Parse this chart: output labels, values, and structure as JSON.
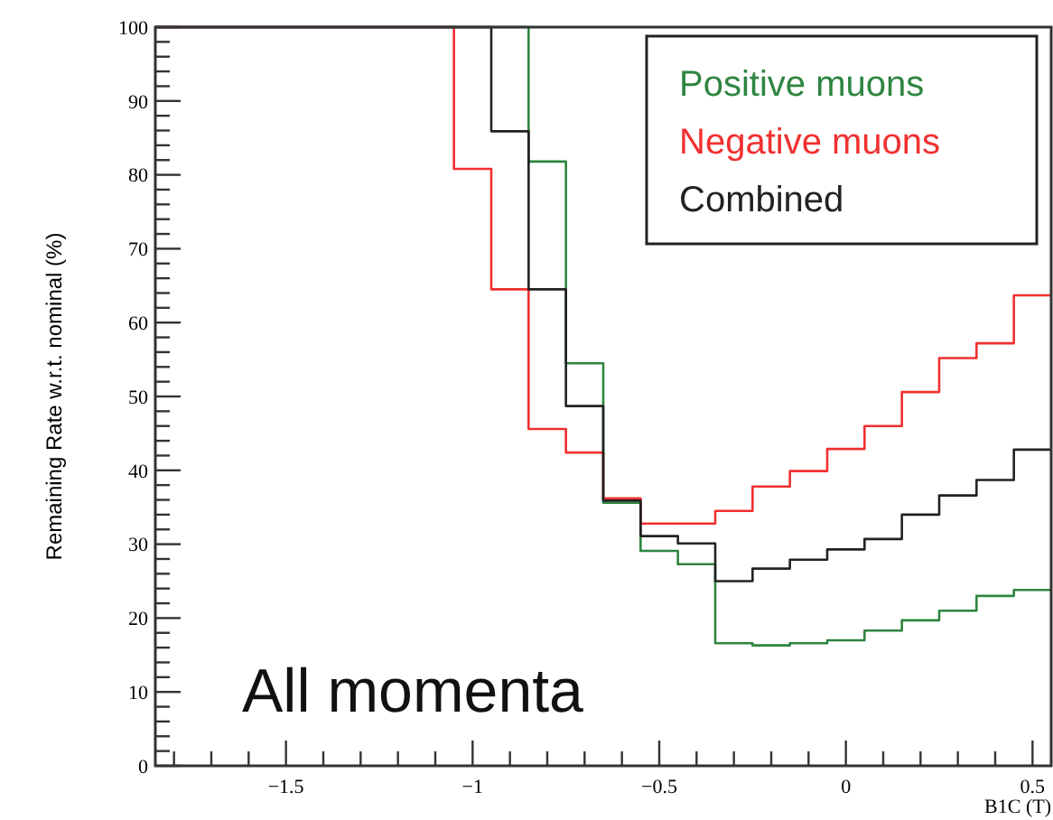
{
  "chart_data": {
    "type": "histogram",
    "xlabel": "B1C (T)",
    "ylabel": "Remaining Rate w.r.t. nominal (%)",
    "bins": [
      -1.85,
      -1.75,
      -1.65,
      -1.55,
      -1.45,
      -1.35,
      -1.25,
      -1.15,
      -1.05,
      -0.95,
      -0.85,
      -0.75,
      -0.65,
      -0.55,
      -0.45,
      -0.35,
      -0.25,
      -0.15,
      -0.05,
      0.05,
      0.15,
      0.25,
      0.35,
      0.45,
      0.55
    ],
    "series": [
      {
        "name": "Positive muons",
        "color": "#2e8540",
        "values": [
          100,
          100,
          100,
          100,
          100,
          100,
          100,
          100,
          100,
          100,
          81.8,
          54.5,
          35.6,
          29.1,
          27.3,
          16.6,
          16.3,
          16.6,
          17,
          18.3,
          19.7,
          21,
          23,
          23.8
        ]
      },
      {
        "name": "Negative muons",
        "color": "#f03030",
        "values": [
          100,
          100,
          100,
          100,
          100,
          100,
          100,
          100,
          80.8,
          64.5,
          45.6,
          42.4,
          36.2,
          32.8,
          32.8,
          34.5,
          37.8,
          39.9,
          42.9,
          46,
          50.6,
          55.2,
          57.2,
          63.7
        ]
      },
      {
        "name": "Combined",
        "color": "#222222",
        "values": [
          100,
          100,
          100,
          100,
          100,
          100,
          100,
          100,
          100,
          85.9,
          64.5,
          48.7,
          35.9,
          31.1,
          30.1,
          25,
          26.7,
          27.9,
          29.3,
          30.7,
          34,
          36.6,
          38.7,
          42.8
        ]
      }
    ],
    "xlim": [
      -1.85,
      0.55
    ],
    "ylim": [
      0,
      100
    ],
    "xticks": [
      {
        "value": -1.8,
        "label": null
      },
      {
        "value": -1.7,
        "label": null
      },
      {
        "value": -1.6,
        "label": null
      },
      {
        "value": -1.5,
        "label": "−1.5"
      },
      {
        "value": -1.4,
        "label": null
      },
      {
        "value": -1.3,
        "label": null
      },
      {
        "value": -1.2,
        "label": null
      },
      {
        "value": -1.1,
        "label": null
      },
      {
        "value": -1,
        "label": "−1"
      },
      {
        "value": -0.9,
        "label": null
      },
      {
        "value": -0.8,
        "label": null
      },
      {
        "value": -0.7,
        "label": null
      },
      {
        "value": -0.6,
        "label": null
      },
      {
        "value": -0.5,
        "label": "−0.5"
      },
      {
        "value": -0.4,
        "label": null
      },
      {
        "value": -0.3,
        "label": null
      },
      {
        "value": -0.2,
        "label": null
      },
      {
        "value": -0.1,
        "label": null
      },
      {
        "value": 0,
        "label": "0"
      },
      {
        "value": 0.1,
        "label": null
      },
      {
        "value": 0.2,
        "label": null
      },
      {
        "value": 0.3,
        "label": null
      },
      {
        "value": 0.4,
        "label": null
      },
      {
        "value": 0.5,
        "label": "0.5"
      }
    ],
    "yticks": [
      0,
      {
        "value": 2,
        "label": null
      },
      {
        "value": 4,
        "label": null
      },
      {
        "value": 6,
        "label": null
      },
      {
        "value": 8,
        "label": null
      },
      10,
      {
        "value": 12,
        "label": null
      },
      {
        "value": 14,
        "label": null
      },
      {
        "value": 16,
        "label": null
      },
      {
        "value": 18,
        "label": null
      },
      20,
      {
        "value": 22,
        "label": null
      },
      {
        "value": 24,
        "label": null
      },
      {
        "value": 26,
        "label": null
      },
      {
        "value": 28,
        "label": null
      },
      30,
      {
        "value": 32,
        "label": null
      },
      {
        "value": 34,
        "label": null
      },
      {
        "value": 36,
        "label": null
      },
      {
        "value": 38,
        "label": null
      },
      40,
      {
        "value": 42,
        "label": null
      },
      {
        "value": 44,
        "label": null
      },
      {
        "value": 46,
        "label": null
      },
      {
        "value": 48,
        "label": null
      },
      50,
      {
        "value": 52,
        "label": null
      },
      {
        "value": 54,
        "label": null
      },
      {
        "value": 56,
        "label": null
      },
      {
        "value": 58,
        "label": null
      },
      60,
      {
        "value": 62,
        "label": null
      },
      {
        "value": 64,
        "label": null
      },
      {
        "value": 66,
        "label": null
      },
      {
        "value": 68,
        "label": null
      },
      70,
      {
        "value": 72,
        "label": null
      },
      {
        "value": 74,
        "label": null
      },
      {
        "value": 76,
        "label": null
      },
      {
        "value": 78,
        "label": null
      },
      80,
      {
        "value": 82,
        "label": null
      },
      {
        "value": 84,
        "label": null
      },
      {
        "value": 86,
        "label": null
      },
      {
        "value": 88,
        "label": null
      },
      90,
      {
        "value": 92,
        "label": null
      },
      {
        "value": 94,
        "label": null
      },
      {
        "value": 96,
        "label": null
      },
      {
        "value": 98,
        "label": null
      },
      100
    ],
    "legend": "top right",
    "annotations": [
      "All momenta"
    ]
  }
}
